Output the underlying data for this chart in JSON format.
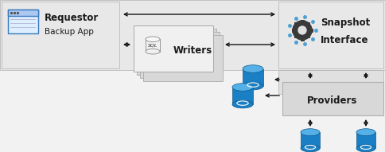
{
  "bg_color": "#f2f2f2",
  "box_light": "#e8e8e8",
  "box_mid": "#d4d4d4",
  "box_dark": "#c8c8c8",
  "box_edge": "#b0b0b0",
  "arrow_color": "#111111",
  "text_color": "#1a1a1a",
  "blue_db_body": "#1a7fc4",
  "blue_db_top": "#55b0e8",
  "blue_db_ring": "#ffffff",
  "blue_dot": "#4a9fd4",
  "requestor_label": "Requestor",
  "requestor_sub": "Backup App",
  "snapshot_label": "Snapshot",
  "snapshot_sub": "Interface",
  "writers_label": "Writers",
  "providers_label": "Providers",
  "font_size_main": 8.5,
  "font_size_sub": 7.5,
  "font_size_icon": 5.5
}
